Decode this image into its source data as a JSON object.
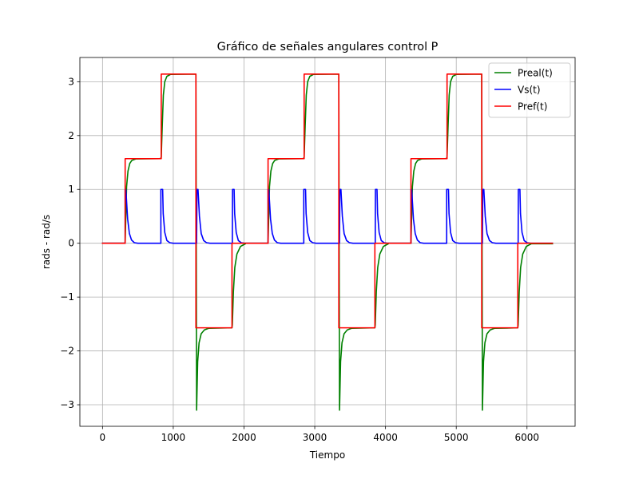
{
  "chart_data": {
    "type": "line",
    "title": "Gráfico de señales angulares control P",
    "xlabel": "Tiempo",
    "ylabel": "rads - rad/s",
    "xlim": [
      -320,
      6680
    ],
    "ylim": [
      -3.4,
      3.45
    ],
    "x_ticks": [
      0,
      1000,
      2000,
      3000,
      4000,
      5000,
      6000
    ],
    "x_tick_labels": [
      "0",
      "1000",
      "2000",
      "3000",
      "4000",
      "5000",
      "6000"
    ],
    "y_ticks": [
      -3,
      -2,
      -1,
      0,
      1,
      2,
      3
    ],
    "y_tick_labels": [
      "−3",
      "−2",
      "−1",
      "0",
      "1",
      "2",
      "3"
    ],
    "grid": true,
    "legend_position": "top-right",
    "cycle_period": 2020,
    "cycle_starts": [
      0,
      2020,
      4040
    ],
    "x_end": 6360,
    "series": [
      {
        "name": "Preal(t)",
        "color": "#008000",
        "cycle_points": [
          [
            0,
            0
          ],
          [
            320,
            0
          ],
          [
            320,
            0
          ],
          [
            340,
            1.05
          ],
          [
            360,
            1.34
          ],
          [
            385,
            1.48
          ],
          [
            415,
            1.54
          ],
          [
            470,
            1.566
          ],
          [
            820,
            1.5708
          ],
          [
            830,
            1.6
          ],
          [
            845,
            2.2
          ],
          [
            860,
            2.75
          ],
          [
            880,
            3.0
          ],
          [
            910,
            3.1
          ],
          [
            960,
            3.135
          ],
          [
            1320,
            3.14159
          ],
          [
            1330,
            -3.1
          ],
          [
            1345,
            -2.2
          ],
          [
            1365,
            -1.85
          ],
          [
            1395,
            -1.68
          ],
          [
            1440,
            -1.61
          ],
          [
            1500,
            -1.58
          ],
          [
            1830,
            -1.5708
          ],
          [
            1835,
            -1.52
          ],
          [
            1850,
            -0.9
          ],
          [
            1870,
            -0.45
          ],
          [
            1900,
            -0.2
          ],
          [
            1950,
            -0.06
          ],
          [
            2020,
            -0.01
          ]
        ]
      },
      {
        "name": "Vs(t)",
        "color": "#0000ff",
        "cycle_points": [
          [
            0,
            0
          ],
          [
            320,
            0
          ],
          [
            320,
            1.0
          ],
          [
            330,
            1.0
          ],
          [
            355,
            0.45
          ],
          [
            380,
            0.18
          ],
          [
            410,
            0.06
          ],
          [
            450,
            0.01
          ],
          [
            500,
            0
          ],
          [
            825,
            0
          ],
          [
            825,
            1.0
          ],
          [
            850,
            1.0
          ],
          [
            858,
            0.55
          ],
          [
            880,
            0.2
          ],
          [
            910,
            0.05
          ],
          [
            950,
            0.01
          ],
          [
            1000,
            0
          ],
          [
            1330,
            0
          ],
          [
            1335,
            1.0
          ],
          [
            1350,
            1.0
          ],
          [
            1370,
            0.5
          ],
          [
            1395,
            0.18
          ],
          [
            1430,
            0.05
          ],
          [
            1470,
            0.01
          ],
          [
            1520,
            0
          ],
          [
            1835,
            0
          ],
          [
            1838,
            1.0
          ],
          [
            1860,
            1.0
          ],
          [
            1868,
            0.55
          ],
          [
            1890,
            0.2
          ],
          [
            1920,
            0.05
          ],
          [
            1960,
            0.01
          ],
          [
            2010,
            0
          ],
          [
            2020,
            0
          ]
        ]
      },
      {
        "name": "Pref(t)",
        "color": "#ff0000",
        "cycle_points": [
          [
            0,
            0
          ],
          [
            320,
            0
          ],
          [
            320,
            1.5708
          ],
          [
            830,
            1.5708
          ],
          [
            830,
            3.14159
          ],
          [
            1320,
            3.14159
          ],
          [
            1320,
            -1.5708
          ],
          [
            1830,
            -1.5708
          ],
          [
            1830,
            0
          ],
          [
            2020,
            0
          ]
        ]
      }
    ]
  }
}
